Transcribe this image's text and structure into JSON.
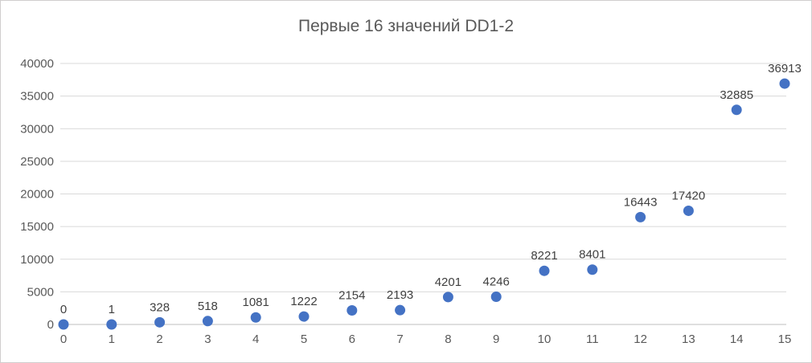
{
  "chart_data": {
    "type": "scatter",
    "title": "Первые 16 значений DD1-2",
    "x": [
      0,
      1,
      2,
      3,
      4,
      5,
      6,
      7,
      8,
      9,
      10,
      11,
      12,
      13,
      14,
      15
    ],
    "values": [
      0,
      1,
      328,
      518,
      1081,
      1222,
      2154,
      2193,
      4201,
      4246,
      8221,
      8401,
      16443,
      17420,
      32885,
      36913
    ],
    "data_labels": [
      "0",
      "1",
      "328",
      "518",
      "1081",
      "1222",
      "2154",
      "2193",
      "4201",
      "4246",
      "8221",
      "8401",
      "16443",
      "17420",
      "32885",
      "36913"
    ],
    "xlabel": "",
    "ylabel": "",
    "xlim": [
      0,
      15
    ],
    "ylim": [
      0,
      40000
    ],
    "x_ticks": [
      0,
      1,
      2,
      3,
      4,
      5,
      6,
      7,
      8,
      9,
      10,
      11,
      12,
      13,
      14,
      15
    ],
    "y_ticks": [
      0,
      5000,
      10000,
      15000,
      20000,
      25000,
      30000,
      35000,
      40000
    ],
    "grid": "horizontal",
    "legend": "none",
    "colors": {
      "point": "#4472c4",
      "gridline": "#d9d9d9",
      "axis_line": "#bfbfbf",
      "tick_label": "#595959",
      "data_label": "#404040",
      "title": "#595959",
      "border": "#d0cece"
    }
  }
}
